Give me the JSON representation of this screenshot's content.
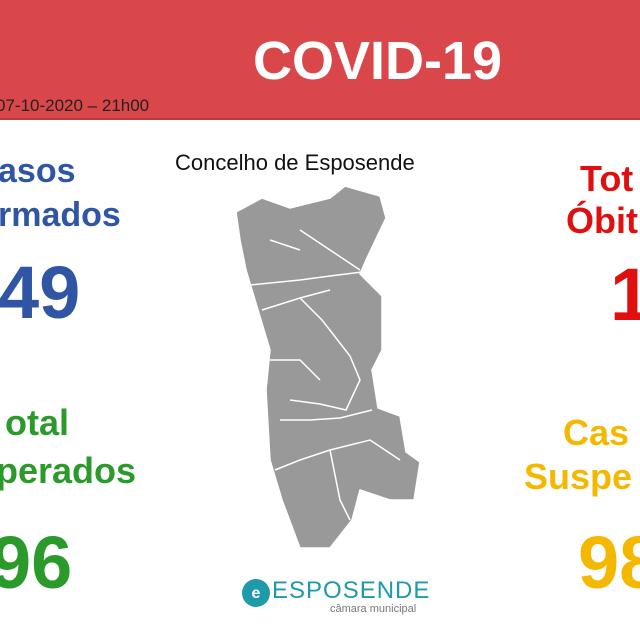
{
  "header": {
    "title": "COVID-19",
    "date": "07-10-2020 – 21h00"
  },
  "map_title": "Concelho de Esposende",
  "left": {
    "cases_label": [
      "asos",
      "rmados"
    ],
    "cases_value": "49",
    "recovered_label": [
      "otal",
      "perados"
    ],
    "recovered_value": "96"
  },
  "right": {
    "deaths_label": [
      "Tot",
      "Óbit"
    ],
    "deaths_value": "1",
    "suspect_label": [
      "Cas",
      "Suspe"
    ],
    "suspect_value": "98"
  },
  "logo": {
    "name": "ESPOSENDE",
    "subtitle": "câmara municipal"
  }
}
